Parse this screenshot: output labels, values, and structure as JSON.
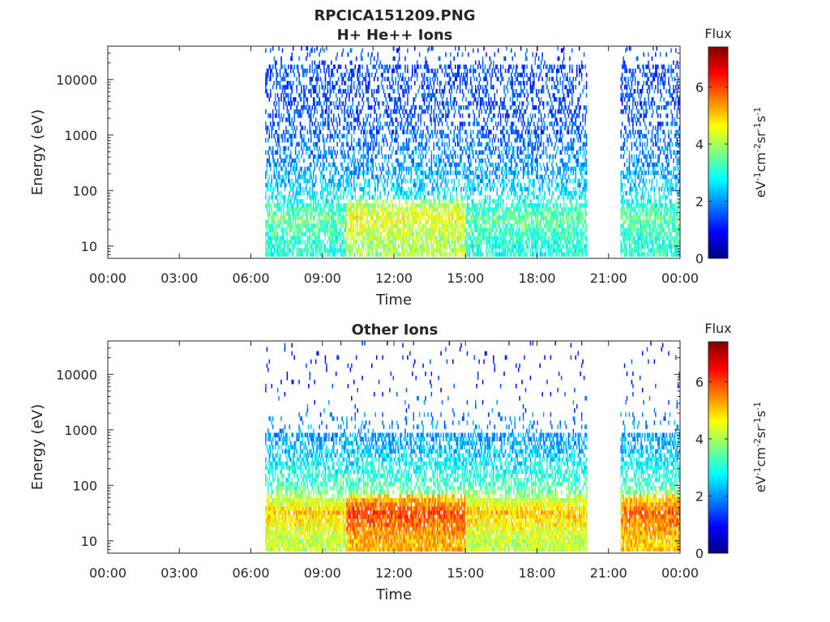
{
  "figure_title": "RPCICA151209.PNG",
  "colors": {
    "axis": "#262626",
    "background": "#ffffff",
    "colormap": [
      "#00007f",
      "#0000ff",
      "#007fff",
      "#00ffff",
      "#7fff7f",
      "#ffff00",
      "#ff7f00",
      "#ff0000",
      "#7f0000"
    ]
  },
  "chart_data": [
    {
      "type": "heatmap",
      "title": "H+ He++ Ions",
      "xlabel": "Time",
      "ylabel": "Energy (eV)",
      "x_ticks": [
        "00:00",
        "03:00",
        "06:00",
        "09:00",
        "12:00",
        "15:00",
        "18:00",
        "21:00",
        "00:00"
      ],
      "y_ticks": [
        "10",
        "100",
        "1000",
        "10000"
      ],
      "y_scale": "log",
      "ylim": [
        6,
        40000
      ],
      "xlim_hours": [
        0,
        24
      ],
      "colorbar": {
        "label": "Flux",
        "units": [
          "eV",
          "-1",
          "cm",
          "-2",
          "sr",
          "-1",
          "s",
          "-1"
        ],
        "ticks": [
          "0",
          "2",
          "4",
          "6"
        ],
        "range": [
          0,
          7.4
        ]
      },
      "data_intervals_hours": [
        [
          6.6,
          20.1
        ],
        [
          21.5,
          24.0
        ]
      ],
      "dominant_flux_by_energy": [
        {
          "energy_ev": 10,
          "flux": 3.0
        },
        {
          "energy_ev": 30,
          "flux": 3.5
        },
        {
          "energy_ev": 100,
          "flux": 2.4
        },
        {
          "energy_ev": 1000,
          "flux": 1.6
        },
        {
          "energy_ev": 10000,
          "flux": 1.4
        }
      ]
    },
    {
      "type": "heatmap",
      "title": "Other Ions",
      "xlabel": "Time",
      "ylabel": "Energy (eV)",
      "x_ticks": [
        "00:00",
        "03:00",
        "06:00",
        "09:00",
        "12:00",
        "15:00",
        "18:00",
        "21:00",
        "00:00"
      ],
      "y_ticks": [
        "10",
        "100",
        "1000",
        "10000"
      ],
      "y_scale": "log",
      "ylim": [
        6,
        40000
      ],
      "xlim_hours": [
        0,
        24
      ],
      "colorbar": {
        "label": "Flux",
        "units": [
          "eV",
          "-1",
          "cm",
          "-2",
          "sr",
          "-1",
          "s",
          "-1"
        ],
        "ticks": [
          "0",
          "2",
          "4",
          "6"
        ],
        "range": [
          0,
          7.4
        ]
      },
      "data_intervals_hours": [
        [
          6.6,
          20.1
        ],
        [
          21.5,
          24.0
        ]
      ],
      "dominant_flux_by_energy": [
        {
          "energy_ev": 10,
          "flux": 4.2
        },
        {
          "energy_ev": 30,
          "flux": 5.0
        },
        {
          "energy_ev": 100,
          "flux": 3.2
        },
        {
          "energy_ev": 500,
          "flux": 2.2
        },
        {
          "energy_ev": 10000,
          "flux": 1.0
        }
      ]
    }
  ]
}
